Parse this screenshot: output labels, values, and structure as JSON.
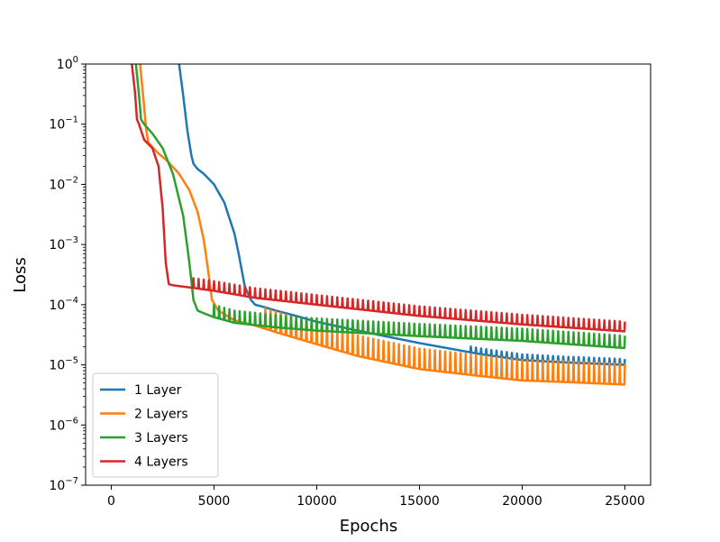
{
  "chart_data": {
    "type": "line",
    "title": "",
    "xlabel": "Epochs",
    "ylabel": "Loss",
    "xlim": [
      -1250,
      26250
    ],
    "ylim": [
      1e-07,
      1
    ],
    "yscale": "log",
    "grid": false,
    "legend_position": "lower-left",
    "x_ticks": [
      0,
      5000,
      10000,
      15000,
      20000,
      25000
    ],
    "x_tick_labels": [
      "0",
      "5000",
      "10000",
      "15000",
      "20000",
      "25000"
    ],
    "y_ticks": [
      1e-07,
      1e-06,
      1e-05,
      0.0001,
      0.001,
      0.01,
      0.1,
      1
    ],
    "y_tick_labels": [
      {
        "base": "10",
        "exp": "−7"
      },
      {
        "base": "10",
        "exp": "−6"
      },
      {
        "base": "10",
        "exp": "−5"
      },
      {
        "base": "10",
        "exp": "−4"
      },
      {
        "base": "10",
        "exp": "−3"
      },
      {
        "base": "10",
        "exp": "−2"
      },
      {
        "base": "10",
        "exp": "−1"
      },
      {
        "base": "10",
        "exp": "0"
      }
    ],
    "series": [
      {
        "name": "1 Layer",
        "color": "#1f77b4",
        "spike_start": 17500,
        "spike_factor": 1.25,
        "x": [
          3300,
          3500,
          3700,
          3900,
          4000,
          4200,
          4500,
          5000,
          5500,
          6000,
          6200,
          6500,
          6800,
          7000,
          7500,
          8000,
          9000,
          10000,
          12000,
          15000,
          18000,
          20000,
          22000,
          25000
        ],
        "y": [
          1.0,
          0.3,
          0.08,
          0.03,
          0.022,
          0.018,
          0.015,
          0.01,
          0.005,
          0.0015,
          0.0007,
          0.0002,
          0.00012,
          0.0001,
          9e-05,
          8e-05,
          6.5e-05,
          5.2e-05,
          3.7e-05,
          2.3e-05,
          1.5e-05,
          1.2e-05,
          1.1e-05,
          1e-05
        ]
      },
      {
        "name": "2 Layers",
        "color": "#ff7f0e",
        "spike_start": 7500,
        "spike_factor": 2.2,
        "x": [
          1400,
          1550,
          1700,
          1800,
          2200,
          2700,
          3300,
          3800,
          4200,
          4500,
          4700,
          4900,
          5200,
          6000,
          7000,
          8000,
          10000,
          12000,
          15000,
          18000,
          20000,
          22000,
          25000
        ],
        "y": [
          1.0,
          0.3,
          0.08,
          0.05,
          0.035,
          0.025,
          0.015,
          0.008,
          0.0035,
          0.0012,
          0.0004,
          0.00012,
          8e-05,
          5.5e-05,
          4.5e-05,
          3.5e-05,
          2.2e-05,
          1.4e-05,
          8.5e-06,
          6.5e-06,
          5.5e-06,
          5.2e-06,
          4.7e-06
        ]
      },
      {
        "name": "3 Layers",
        "color": "#2ca02c",
        "spike_start": 5000,
        "spike_factor": 1.6,
        "x": [
          1200,
          1350,
          1450,
          1600,
          2000,
          2500,
          3000,
          3500,
          3800,
          4000,
          4200,
          4500,
          5000,
          6000,
          8000,
          10000,
          15000,
          20000,
          25000
        ],
        "y": [
          1.0,
          0.3,
          0.12,
          0.1,
          0.07,
          0.04,
          0.015,
          0.003,
          0.0005,
          0.00012,
          8e-05,
          7.2e-05,
          6.2e-05,
          5e-05,
          4.2e-05,
          3.7e-05,
          3e-05,
          2.5e-05,
          1.9e-05
        ]
      },
      {
        "name": "4 Layers",
        "color": "#d62728",
        "spike_start": 4000,
        "spike_factor": 1.45,
        "x": [
          1000,
          1150,
          1250,
          1350,
          1600,
          2000,
          2300,
          2500,
          2650,
          2800,
          3000,
          4000,
          5000,
          7000,
          10000,
          15000,
          20000,
          25000
        ],
        "y": [
          1.0,
          0.35,
          0.12,
          0.1,
          0.055,
          0.04,
          0.02,
          0.004,
          0.0005,
          0.00022,
          0.00021,
          0.00019,
          0.00017,
          0.00013,
          0.0001,
          6.5e-05,
          4.7e-05,
          3.6e-05
        ]
      }
    ]
  }
}
